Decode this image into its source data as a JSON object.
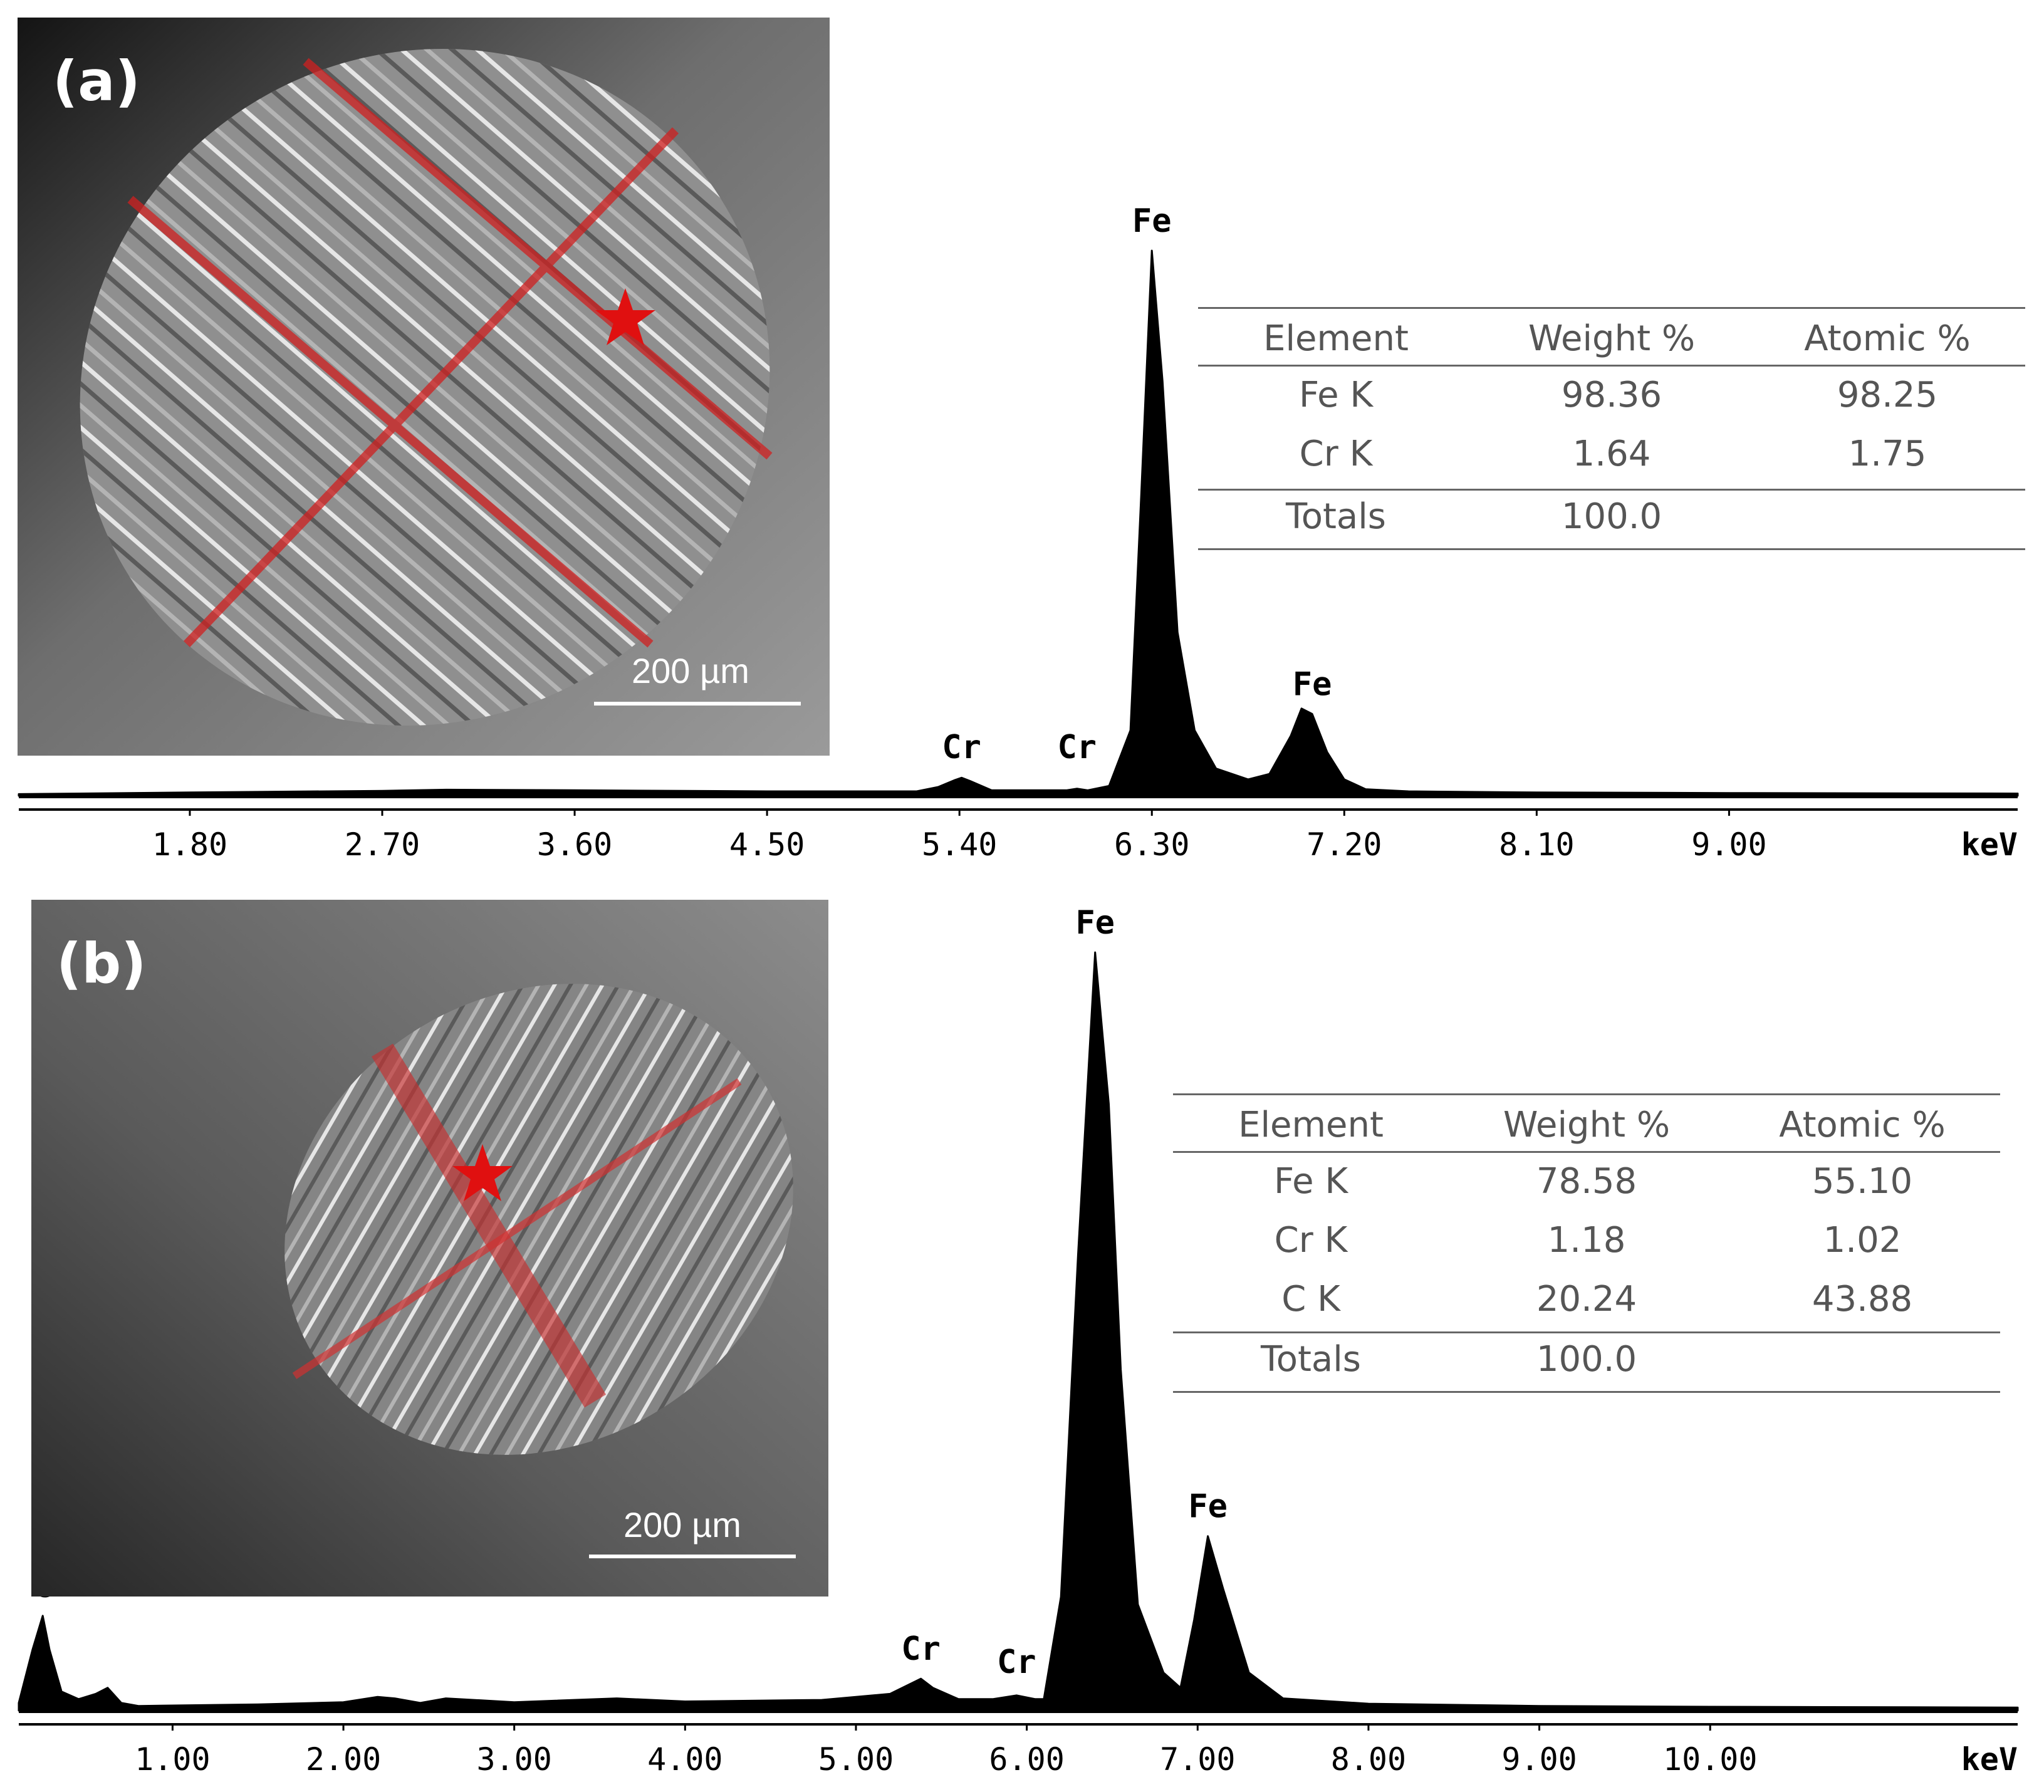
{
  "panels": [
    {
      "label": "(a)",
      "scale_bar": "200 µm",
      "table": {
        "headers": [
          "Element",
          "Weight %",
          "Atomic %"
        ],
        "rows": [
          [
            "Fe K",
            "98.36",
            "98.25"
          ],
          [
            "Cr K",
            "1.64",
            "1.75"
          ]
        ],
        "totals": [
          "Totals",
          "100.0",
          ""
        ]
      }
    },
    {
      "label": "(b)",
      "scale_bar": "200 µm",
      "table": {
        "headers": [
          "Element",
          "Weight %",
          "Atomic %"
        ],
        "rows": [
          [
            "Fe K",
            "78.58",
            "55.10"
          ],
          [
            "Cr K",
            "1.18",
            "1.02"
          ],
          [
            "C K",
            "20.24",
            "43.88"
          ]
        ],
        "totals": [
          "Totals",
          "100.0",
          ""
        ]
      }
    }
  ],
  "chart_data": [
    {
      "type": "line",
      "xlabel": "keV",
      "ylabel": "",
      "xlim": [
        1.0,
        10.35
      ],
      "ylim": [
        0,
        100
      ],
      "x_ticks": [
        "1.80",
        "2.70",
        "3.60",
        "4.50",
        "5.40",
        "6.30",
        "7.20",
        "8.10",
        "9.00"
      ],
      "x_tick_values": [
        1.8,
        2.7,
        3.6,
        4.5,
        5.4,
        6.3,
        7.2,
        8.1,
        9.0
      ],
      "series": [
        {
          "x": [
            1.0,
            1.8,
            2.7,
            3.0,
            3.6,
            4.5,
            5.2,
            5.3,
            5.38,
            5.41,
            5.45,
            5.55,
            5.9,
            5.95,
            6.0,
            6.1,
            6.2,
            6.25,
            6.3,
            6.35,
            6.42,
            6.5,
            6.6,
            6.75,
            6.85,
            6.95,
            7.0,
            7.05,
            7.12,
            7.2,
            7.3,
            7.5,
            8.1,
            9.0,
            10.35
          ],
          "y": [
            0.3,
            0.6,
            0.9,
            1.1,
            1.0,
            0.8,
            0.8,
            1.6,
            2.9,
            3.3,
            2.7,
            1.0,
            1.0,
            1.3,
            1.0,
            1.8,
            12,
            55,
            100,
            76,
            30,
            12,
            5,
            3,
            4,
            11,
            16,
            15,
            8,
            3,
            1.2,
            0.8,
            0.6,
            0.5,
            0.4
          ]
        }
      ],
      "peak_labels": [
        {
          "text": "Fe",
          "x": 6.3
        },
        {
          "text": "Fe",
          "x": 7.05
        },
        {
          "text": "Cr",
          "x": 5.41
        },
        {
          "text": "Cr",
          "x": 5.95
        }
      ]
    },
    {
      "type": "line",
      "xlabel": "keV",
      "ylabel": "",
      "xlim": [
        0.1,
        11.8
      ],
      "ylim": [
        0,
        100
      ],
      "x_ticks": [
        "1.00",
        "2.00",
        "3.00",
        "4.00",
        "5.00",
        "6.00",
        "7.00",
        "8.00",
        "9.00",
        "10.00"
      ],
      "x_tick_values": [
        1,
        2,
        3,
        4,
        5,
        6,
        7,
        8,
        9,
        10
      ],
      "series": [
        {
          "x": [
            0.1,
            0.18,
            0.24,
            0.28,
            0.35,
            0.45,
            0.55,
            0.62,
            0.7,
            0.8,
            1.5,
            2.0,
            2.2,
            2.3,
            2.45,
            2.6,
            3.0,
            3.6,
            4.0,
            4.8,
            5.2,
            5.38,
            5.45,
            5.6,
            5.8,
            5.94,
            6.05,
            6.1,
            6.2,
            6.3,
            6.4,
            6.48,
            6.55,
            6.65,
            6.8,
            6.9,
            6.98,
            7.06,
            7.15,
            7.3,
            7.5,
            8.0,
            9.0,
            10.0,
            11.8
          ],
          "y": [
            1.0,
            8.0,
            12.5,
            8.0,
            2.5,
            1.5,
            2.2,
            3.0,
            1.0,
            0.6,
            0.8,
            1.1,
            1.8,
            1.6,
            1.0,
            1.6,
            1.1,
            1.6,
            1.2,
            1.4,
            2.2,
            4.2,
            3.0,
            1.5,
            1.5,
            2.0,
            1.5,
            1.5,
            15,
            60,
            100,
            80,
            45,
            14,
            5,
            3,
            12,
            23,
            16,
            5,
            1.6,
            0.9,
            0.6,
            0.5,
            0.4
          ]
        }
      ],
      "peak_labels": [
        {
          "text": "C",
          "x": 0.24
        },
        {
          "text": "Cr",
          "x": 5.38
        },
        {
          "text": "Cr",
          "x": 5.94
        },
        {
          "text": "Fe",
          "x": 6.4
        },
        {
          "text": "Fe",
          "x": 7.06
        }
      ]
    }
  ]
}
